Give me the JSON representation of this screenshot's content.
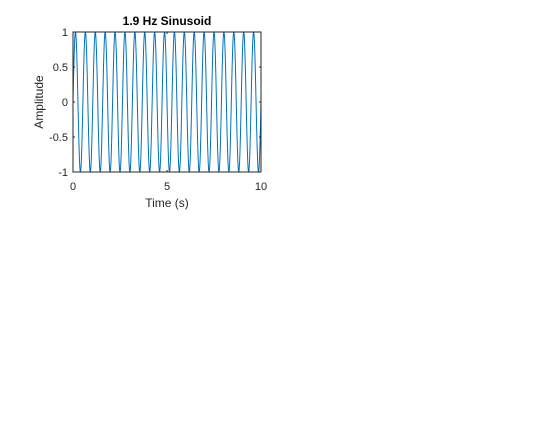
{
  "chart_data": {
    "type": "line",
    "title": "1.9 Hz Sinusoid",
    "xlabel": "Time (s)",
    "ylabel": "Amplitude",
    "xlim": [
      0,
      10
    ],
    "ylim": [
      -1,
      1
    ],
    "x_ticks": [
      0,
      5,
      10
    ],
    "x_tick_labels": [
      "0",
      "5",
      "10"
    ],
    "y_ticks": [
      -1,
      -0.5,
      0,
      0.5,
      1
    ],
    "y_tick_labels": [
      "-1",
      "-0.5",
      "0",
      "0.5",
      "1"
    ],
    "grid": false,
    "series": [
      {
        "function": "sin",
        "frequency_hz": 1.9,
        "amplitude": 1,
        "x_start": 0,
        "x_end": 10,
        "color": "#0072BD"
      }
    ]
  },
  "colors": {
    "axes": "#262626",
    "line": "#0072BD",
    "background": "#ffffff"
  }
}
